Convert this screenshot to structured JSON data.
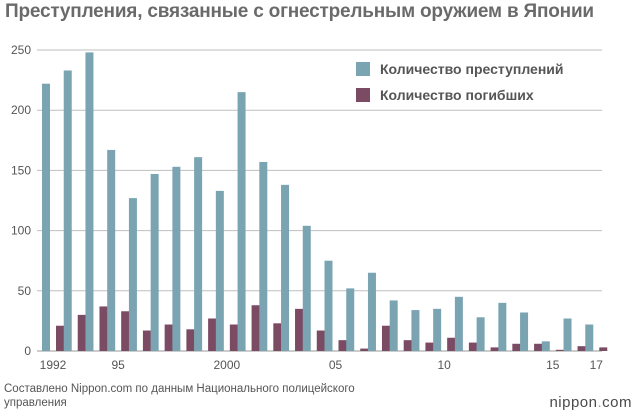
{
  "title": "Преступления, связанные с огнестрельным оружием в Японии",
  "source": "Составлено Nippon.com по данным Национального полицейского управления",
  "brand": {
    "name": "nippon",
    "dot": ".",
    "suffix": "com"
  },
  "colors": {
    "crimes": "#7ba4b3",
    "deaths": "#7b4a63",
    "grid": "#bfbfbf",
    "axis": "#999999"
  },
  "chart_data": {
    "type": "bar",
    "title": "Преступления, связанные с огнестрельным оружием в Японии",
    "xlabel": "",
    "ylabel": "",
    "ylim": [
      0,
      250
    ],
    "yticks": [
      0,
      50,
      100,
      150,
      200,
      250
    ],
    "grid": true,
    "legend_position": "top-right",
    "categories": [
      "1992",
      "1993",
      "1994",
      "1995",
      "1996",
      "1997",
      "1998",
      "1999",
      "2000",
      "2001",
      "2002",
      "2003",
      "2004",
      "2005",
      "2006",
      "2007",
      "2008",
      "2009",
      "2010",
      "2011",
      "2012",
      "2013",
      "2014",
      "2015",
      "2016",
      "2017"
    ],
    "tick_labels": [
      "1992",
      "",
      "",
      "95",
      "",
      "",
      "",
      "",
      "2000",
      "",
      "",
      "",
      "",
      "05",
      "",
      "",
      "",
      "",
      "10",
      "",
      "",
      "",
      "",
      "15",
      "",
      "17"
    ],
    "series": [
      {
        "name": "Количество преступлений",
        "values": [
          222,
          233,
          248,
          167,
          127,
          147,
          153,
          161,
          133,
          215,
          157,
          138,
          104,
          75,
          52,
          65,
          42,
          34,
          35,
          45,
          28,
          40,
          32,
          8,
          27,
          22
        ]
      },
      {
        "name": "Количество погибших",
        "values": [
          21,
          30,
          37,
          33,
          17,
          22,
          18,
          27,
          22,
          38,
          23,
          35,
          17,
          9,
          2,
          21,
          9,
          7,
          11,
          7,
          3,
          6,
          6,
          1,
          4,
          3
        ]
      }
    ]
  }
}
